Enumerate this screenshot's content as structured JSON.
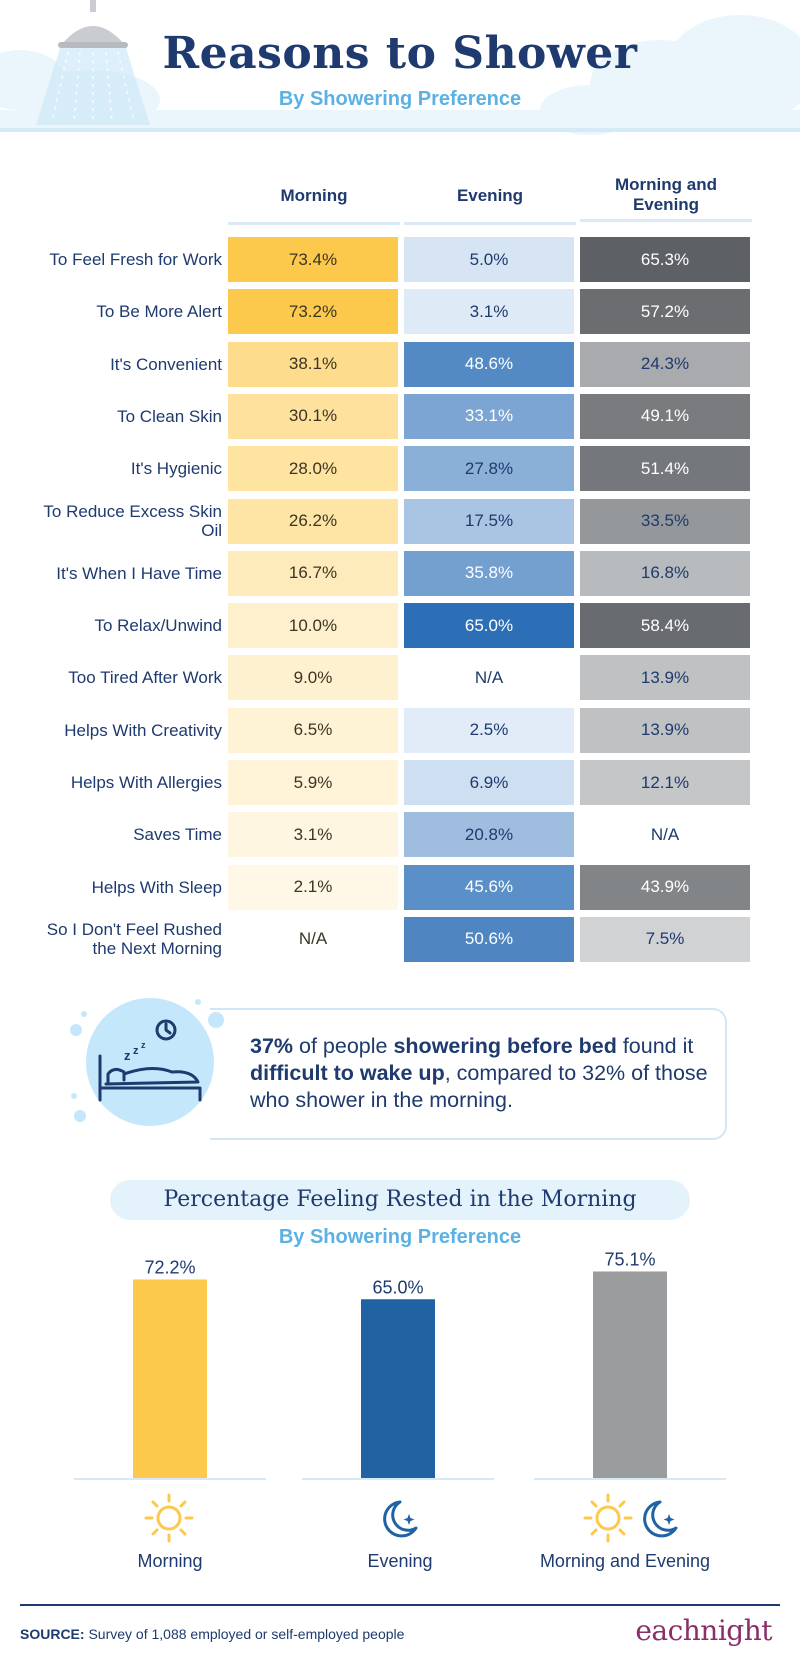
{
  "title": "Reasons to Shower",
  "subtitle": "By Showering Preference",
  "table": {
    "columns": [
      "Morning",
      "Evening",
      "Morning and Evening"
    ],
    "rows": [
      {
        "label": "To Feel Fresh for Work",
        "values": [
          "73.4%",
          "5.0%",
          "65.3%"
        ]
      },
      {
        "label": "To Be More Alert",
        "values": [
          "73.2%",
          "3.1%",
          "57.2%"
        ]
      },
      {
        "label": "It's Convenient",
        "values": [
          "38.1%",
          "48.6%",
          "24.3%"
        ]
      },
      {
        "label": "To Clean Skin",
        "values": [
          "30.1%",
          "33.1%",
          "49.1%"
        ]
      },
      {
        "label": "It's Hygienic",
        "values": [
          "28.0%",
          "27.8%",
          "51.4%"
        ]
      },
      {
        "label": "To Reduce Excess Skin Oil",
        "values": [
          "26.2%",
          "17.5%",
          "33.5%"
        ]
      },
      {
        "label": "It's When I Have Time",
        "values": [
          "16.7%",
          "35.8%",
          "16.8%"
        ]
      },
      {
        "label": "To Relax/Unwind",
        "values": [
          "10.0%",
          "65.0%",
          "58.4%"
        ]
      },
      {
        "label": "Too Tired After Work",
        "values": [
          "9.0%",
          "N/A",
          "13.9%"
        ]
      },
      {
        "label": "Helps With Creativity",
        "values": [
          "6.5%",
          "2.5%",
          "13.9%"
        ]
      },
      {
        "label": "Helps With Allergies",
        "values": [
          "5.9%",
          "6.9%",
          "12.1%"
        ]
      },
      {
        "label": "Saves Time",
        "values": [
          "3.1%",
          "20.8%",
          "N/A"
        ]
      },
      {
        "label": "Helps With Sleep",
        "values": [
          "2.1%",
          "45.6%",
          "43.9%"
        ]
      },
      {
        "label": "So I Don't Feel Rushed the Next Morning",
        "values": [
          "N/A",
          "50.6%",
          "7.5%"
        ]
      }
    ]
  },
  "callout": {
    "pct": "37%",
    "t1": " of people ",
    "b1": "showering before bed",
    "t2": " found it ",
    "b2": "difficult to wake up",
    "t3": ", compared to 32% of those who shower in the morning."
  },
  "chart_data": {
    "type": "bar",
    "title": "Percentage Feeling Rested in the Morning",
    "subtitle": "By Showering Preference",
    "categories": [
      "Morning",
      "Evening",
      "Morning and Evening"
    ],
    "values": [
      72.2,
      65.0,
      75.1
    ],
    "value_labels": [
      "72.2%",
      "65.0%",
      "75.1%"
    ],
    "colors": [
      "#fcc94d",
      "#2162a3",
      "#9a9c9e"
    ],
    "ylim": [
      0,
      80
    ],
    "grid": false,
    "icons": [
      [
        "sun-icon"
      ],
      [
        "moon-star-icon"
      ],
      [
        "sun-icon",
        "moon-star-icon"
      ]
    ]
  },
  "footer": {
    "source_label": "SOURCE:",
    "source_text": " Survey of 1,088 employed or self-employed people",
    "brand": "eachnight"
  },
  "colors": {
    "navy": "#1e3a6e",
    "light_blue": "#5cb1e4",
    "morning_scale": [
      "#fffbf1",
      "#fcc94d"
    ],
    "evening_scale": [
      "#f3f8fe",
      "#2d6fb6"
    ],
    "both_scale": [
      "#eceeef",
      "#5d6064"
    ]
  }
}
